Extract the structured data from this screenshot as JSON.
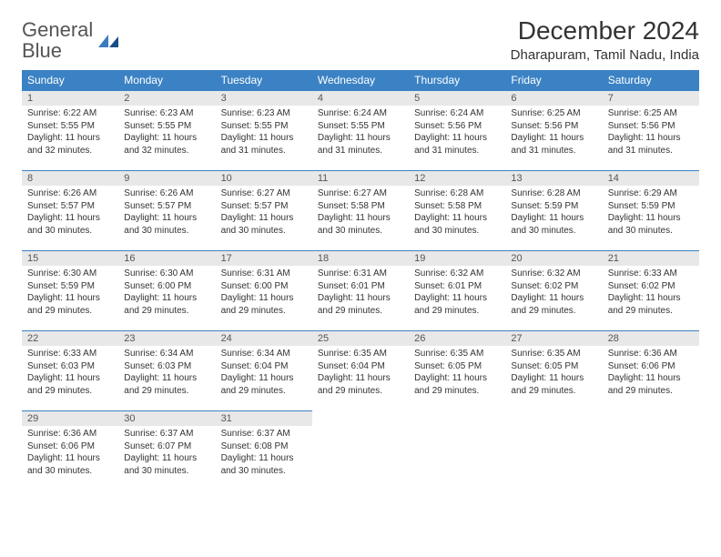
{
  "brand": {
    "name_a": "General",
    "name_b": "Blue"
  },
  "header": {
    "month_title": "December 2024",
    "location": "Dharapuram, Tamil Nadu, India"
  },
  "calendar": {
    "header_bg": "#3b82c4",
    "header_fg": "#ffffff",
    "daynum_bg": "#e8e8e8",
    "border_color": "#3b82c4",
    "font_size_header": 12,
    "font_size_daynum": 11,
    "font_size_body": 10,
    "columns": [
      "Sunday",
      "Monday",
      "Tuesday",
      "Wednesday",
      "Thursday",
      "Friday",
      "Saturday"
    ],
    "weeks": [
      [
        {
          "d": "1",
          "sr": "6:22 AM",
          "ss": "5:55 PM",
          "dl": "11 hours and 32 minutes."
        },
        {
          "d": "2",
          "sr": "6:23 AM",
          "ss": "5:55 PM",
          "dl": "11 hours and 32 minutes."
        },
        {
          "d": "3",
          "sr": "6:23 AM",
          "ss": "5:55 PM",
          "dl": "11 hours and 31 minutes."
        },
        {
          "d": "4",
          "sr": "6:24 AM",
          "ss": "5:55 PM",
          "dl": "11 hours and 31 minutes."
        },
        {
          "d": "5",
          "sr": "6:24 AM",
          "ss": "5:56 PM",
          "dl": "11 hours and 31 minutes."
        },
        {
          "d": "6",
          "sr": "6:25 AM",
          "ss": "5:56 PM",
          "dl": "11 hours and 31 minutes."
        },
        {
          "d": "7",
          "sr": "6:25 AM",
          "ss": "5:56 PM",
          "dl": "11 hours and 31 minutes."
        }
      ],
      [
        {
          "d": "8",
          "sr": "6:26 AM",
          "ss": "5:57 PM",
          "dl": "11 hours and 30 minutes."
        },
        {
          "d": "9",
          "sr": "6:26 AM",
          "ss": "5:57 PM",
          "dl": "11 hours and 30 minutes."
        },
        {
          "d": "10",
          "sr": "6:27 AM",
          "ss": "5:57 PM",
          "dl": "11 hours and 30 minutes."
        },
        {
          "d": "11",
          "sr": "6:27 AM",
          "ss": "5:58 PM",
          "dl": "11 hours and 30 minutes."
        },
        {
          "d": "12",
          "sr": "6:28 AM",
          "ss": "5:58 PM",
          "dl": "11 hours and 30 minutes."
        },
        {
          "d": "13",
          "sr": "6:28 AM",
          "ss": "5:59 PM",
          "dl": "11 hours and 30 minutes."
        },
        {
          "d": "14",
          "sr": "6:29 AM",
          "ss": "5:59 PM",
          "dl": "11 hours and 30 minutes."
        }
      ],
      [
        {
          "d": "15",
          "sr": "6:30 AM",
          "ss": "5:59 PM",
          "dl": "11 hours and 29 minutes."
        },
        {
          "d": "16",
          "sr": "6:30 AM",
          "ss": "6:00 PM",
          "dl": "11 hours and 29 minutes."
        },
        {
          "d": "17",
          "sr": "6:31 AM",
          "ss": "6:00 PM",
          "dl": "11 hours and 29 minutes."
        },
        {
          "d": "18",
          "sr": "6:31 AM",
          "ss": "6:01 PM",
          "dl": "11 hours and 29 minutes."
        },
        {
          "d": "19",
          "sr": "6:32 AM",
          "ss": "6:01 PM",
          "dl": "11 hours and 29 minutes."
        },
        {
          "d": "20",
          "sr": "6:32 AM",
          "ss": "6:02 PM",
          "dl": "11 hours and 29 minutes."
        },
        {
          "d": "21",
          "sr": "6:33 AM",
          "ss": "6:02 PM",
          "dl": "11 hours and 29 minutes."
        }
      ],
      [
        {
          "d": "22",
          "sr": "6:33 AM",
          "ss": "6:03 PM",
          "dl": "11 hours and 29 minutes."
        },
        {
          "d": "23",
          "sr": "6:34 AM",
          "ss": "6:03 PM",
          "dl": "11 hours and 29 minutes."
        },
        {
          "d": "24",
          "sr": "6:34 AM",
          "ss": "6:04 PM",
          "dl": "11 hours and 29 minutes."
        },
        {
          "d": "25",
          "sr": "6:35 AM",
          "ss": "6:04 PM",
          "dl": "11 hours and 29 minutes."
        },
        {
          "d": "26",
          "sr": "6:35 AM",
          "ss": "6:05 PM",
          "dl": "11 hours and 29 minutes."
        },
        {
          "d": "27",
          "sr": "6:35 AM",
          "ss": "6:05 PM",
          "dl": "11 hours and 29 minutes."
        },
        {
          "d": "28",
          "sr": "6:36 AM",
          "ss": "6:06 PM",
          "dl": "11 hours and 29 minutes."
        }
      ],
      [
        {
          "d": "29",
          "sr": "6:36 AM",
          "ss": "6:06 PM",
          "dl": "11 hours and 30 minutes."
        },
        {
          "d": "30",
          "sr": "6:37 AM",
          "ss": "6:07 PM",
          "dl": "11 hours and 30 minutes."
        },
        {
          "d": "31",
          "sr": "6:37 AM",
          "ss": "6:08 PM",
          "dl": "11 hours and 30 minutes."
        },
        null,
        null,
        null,
        null
      ]
    ],
    "labels": {
      "sunrise": "Sunrise:",
      "sunset": "Sunset:",
      "daylight": "Daylight:"
    }
  }
}
